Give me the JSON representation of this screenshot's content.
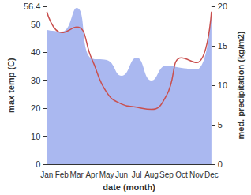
{
  "chart_data": {
    "type": "line",
    "xlabel": "date (month)",
    "ylabel": "max temp (C)",
    "y2label": "med. precipitation (kg/m2)",
    "categories": [
      "Jan",
      "Feb",
      "Mar",
      "Apr",
      "May",
      "Jun",
      "Jul",
      "Aug",
      "Sep",
      "Oct",
      "Nov",
      "Dec"
    ],
    "series": [
      {
        "type": "area",
        "axis": "y2",
        "color": "#aab8f0",
        "values": [
          17.0,
          16.8,
          19.8,
          13.4,
          13.2,
          11.2,
          13.5,
          10.6,
          12.5,
          12.2,
          12.0,
          19.4
        ]
      },
      {
        "type": "line",
        "color": "#c9504f",
        "values": [
          54.5,
          47.0,
          49.0,
          37.7,
          25.7,
          21.5,
          20.4,
          19.6,
          24.6,
          38.0,
          36.3,
          54.5
        ]
      }
    ],
    "ylim": [
      0,
      56.4
    ],
    "yticks": [
      0,
      10,
      20,
      30,
      40,
      50
    ],
    "y2lim": [
      0,
      20
    ],
    "y2ticks": [
      0,
      5,
      10,
      15,
      20
    ],
    "grid": false
  }
}
